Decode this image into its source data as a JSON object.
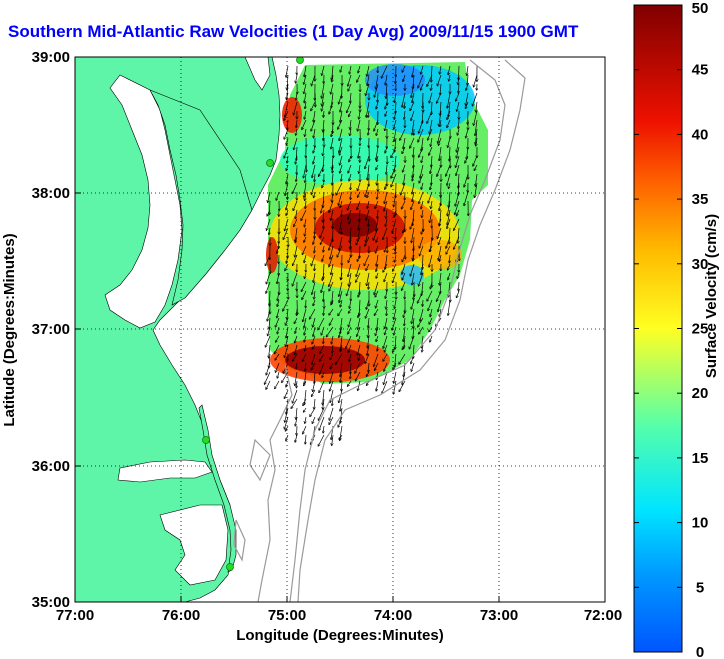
{
  "title": "Southern Mid-Atlantic Raw Velocities (1 Day Avg) 2009/11/15 1900 GMT",
  "colors": {
    "land": "#5ef5a8",
    "water": "#ffffff",
    "coast_line": "#000000",
    "bathymetry": "#9a9a9a",
    "station": "#22dd22",
    "title": "#0000ff"
  },
  "map": {
    "lon_range": [
      -77,
      -72
    ],
    "lat_range": [
      35,
      39
    ],
    "x_ticks": [
      "77:00",
      "76:00",
      "75:00",
      "74:00",
      "73:00",
      "72:00"
    ],
    "y_ticks": [
      "35:00",
      "36:00",
      "37:00",
      "38:00",
      "39:00"
    ],
    "xlabel": "Longitude (Degrees:Minutes)",
    "ylabel": "Latitude (Degrees:Minutes)",
    "grid": "dotted",
    "station_markers": 4
  },
  "colorbar": {
    "label": "Surface Velocity (cm/s)",
    "min": 0,
    "max": 50,
    "ticks": [
      "0",
      "5",
      "10",
      "15",
      "20",
      "25",
      "30",
      "35",
      "40",
      "45",
      "50"
    ],
    "colormap": "jet"
  }
}
